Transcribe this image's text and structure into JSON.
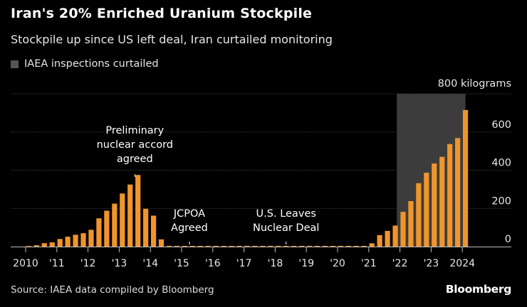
{
  "header": {
    "title": "Iran's 20% Enriched Uranium Stockpile",
    "subtitle": "Stockpile up since US left deal, Iran curtailed monitoring"
  },
  "legend": {
    "label": "IAEA inspections curtailed",
    "color": "#555555"
  },
  "footer": {
    "source": "Source: IAEA data compiled by Bloomberg",
    "brand": "Bloomberg"
  },
  "chart_data": {
    "type": "bar",
    "unit_label": "800 kilograms",
    "ylim": [
      0,
      800
    ],
    "yticks": [
      0,
      200,
      400,
      600
    ],
    "y_tick_labels": [
      "0",
      "200",
      "400",
      "600"
    ],
    "x_range": [
      2009.75,
      2024.45
    ],
    "x_ticks": [
      2010,
      2011,
      2012,
      2013,
      2014,
      2015,
      2016,
      2017,
      2018,
      2019,
      2020,
      2021,
      2022,
      2023,
      2024
    ],
    "x_tick_labels": [
      "2010",
      "'11",
      "'12",
      "'13",
      "'14",
      "'15",
      "'16",
      "'17",
      "'18",
      "'19",
      "'20",
      "'21",
      "'22",
      "'23",
      "2024"
    ],
    "bar_color": "#f0952b",
    "shaded_region": {
      "x": [
        2021.9,
        2024.1
      ],
      "color": "#555555"
    },
    "series": [
      {
        "x": [
          2010.1,
          2010.35,
          2010.6,
          2010.85,
          2011.1,
          2011.35,
          2011.6,
          2011.85,
          2012.1,
          2012.35,
          2012.6,
          2012.85,
          2013.1,
          2013.35,
          2013.6,
          2013.85,
          2014.1,
          2014.35,
          2014.6,
          2014.85,
          2015.1,
          2015.35,
          2015.6,
          2015.85,
          2016.1,
          2016.35,
          2016.6,
          2016.85,
          2017.1,
          2017.35,
          2017.6,
          2017.85,
          2018.1,
          2018.35,
          2018.6,
          2018.85,
          2019.1,
          2019.35,
          2019.6,
          2019.85,
          2020.1,
          2020.35,
          2020.6,
          2020.85,
          2021.1,
          2021.35,
          2021.6,
          2021.85,
          2022.1,
          2022.35,
          2022.6,
          2022.85,
          2023.1,
          2023.35,
          2023.6,
          2023.85,
          2024.1
        ],
        "values": [
          3,
          7,
          18,
          22,
          40,
          52,
          62,
          70,
          88,
          148,
          188,
          225,
          278,
          325,
          375,
          198,
          162,
          38,
          0,
          0,
          0,
          0,
          0,
          0,
          0,
          0,
          0,
          0,
          0,
          0,
          0,
          0,
          0,
          0,
          0,
          0,
          0,
          0,
          0,
          0,
          0,
          0,
          0,
          0,
          17,
          60,
          82,
          110,
          182,
          238,
          332,
          387,
          435,
          470,
          537,
          568,
          715
        ]
      }
    ],
    "annotations": [
      {
        "text": [
          "Preliminary",
          "nuclear accord",
          "agreed"
        ],
        "x": 2013.5
      },
      {
        "text": [
          "JCPOA",
          "Agreed"
        ],
        "x": 2015.25
      },
      {
        "text": [
          "U.S. Leaves",
          "Nuclear Deal"
        ],
        "x": 2018.35
      }
    ]
  }
}
